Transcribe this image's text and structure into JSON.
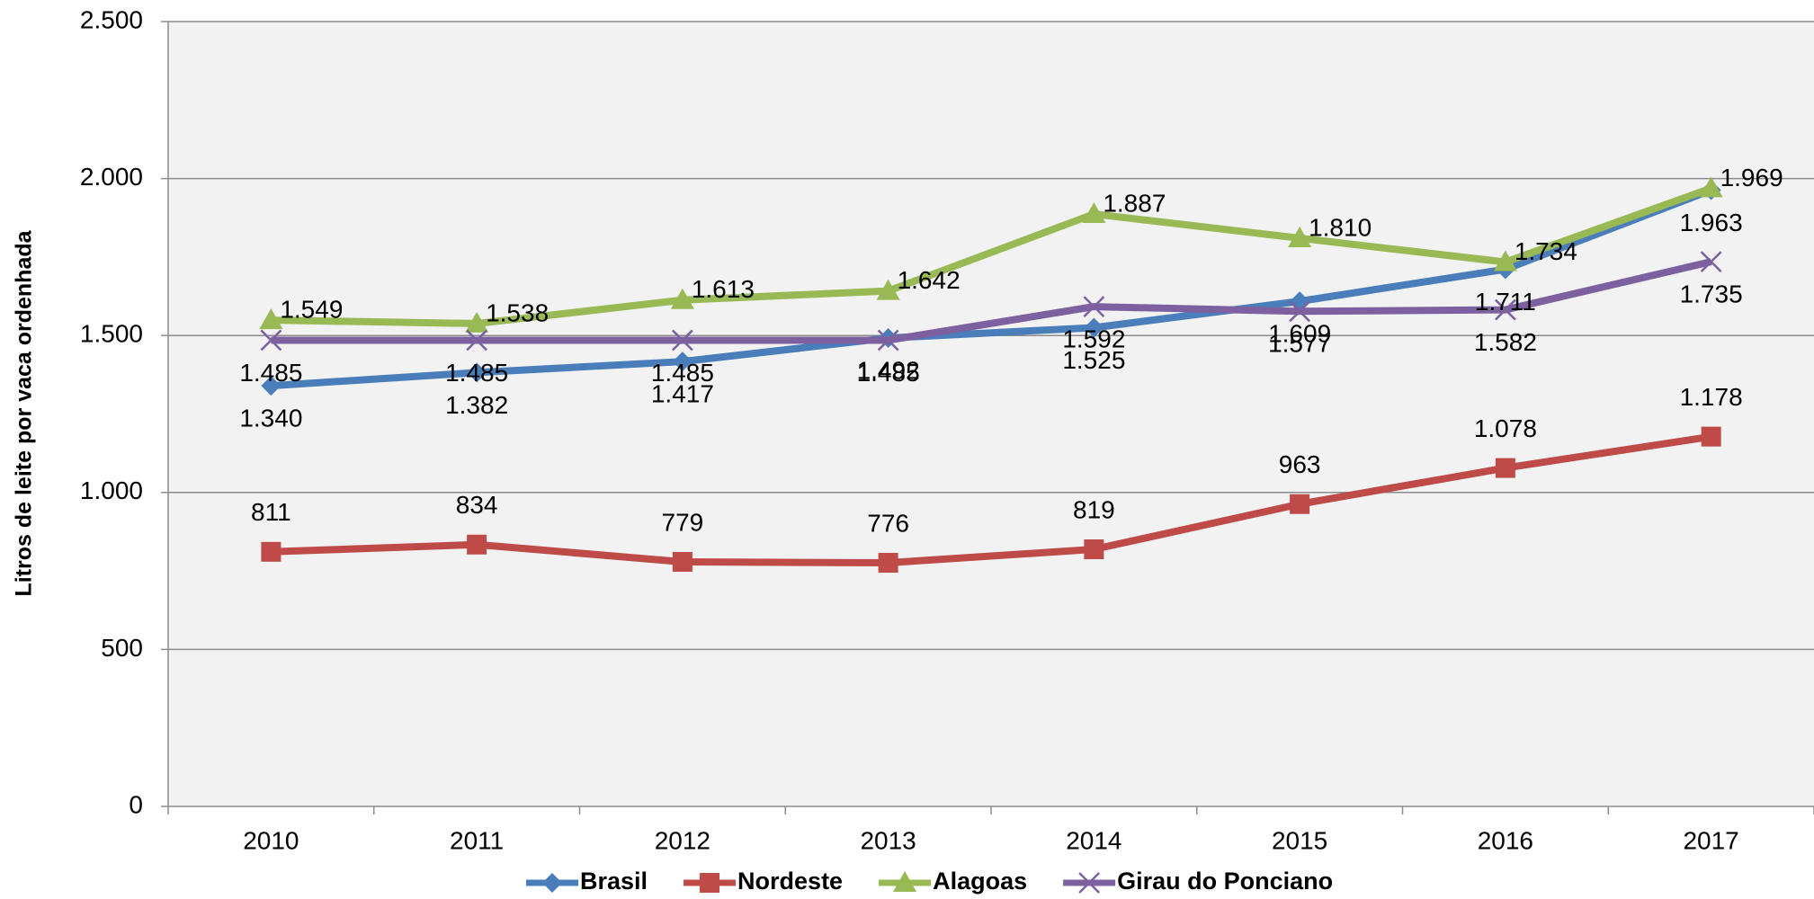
{
  "chart_data": {
    "type": "line",
    "y_label": "Litros de leite por vaca ordenhada",
    "categories": [
      "2010",
      "2011",
      "2012",
      "2013",
      "2014",
      "2015",
      "2016",
      "2017"
    ],
    "ylim": [
      0,
      2500
    ],
    "yticks": [
      0,
      500,
      {
        "value": 1000,
        "label": "1.000"
      },
      {
        "value": 1500,
        "label": "1.500"
      },
      {
        "value": 2000,
        "label": "2.000"
      },
      {
        "value": 2500,
        "label": "2.500"
      }
    ],
    "grid": true,
    "legend": "bottom",
    "series": [
      {
        "name": "Brasil",
        "color": "#4a7ebb",
        "marker": "diamond",
        "values": [
          1340,
          1382,
          1417,
          1492,
          1525,
          1609,
          1711,
          1963
        ],
        "value_labels": [
          "1.340",
          "1.382",
          "1.417",
          "1.492",
          "1.525",
          "1.609",
          "1.711",
          "1.963"
        ]
      },
      {
        "name": "Nordeste",
        "color": "#be4b48",
        "marker": "square",
        "values": [
          811,
          834,
          779,
          776,
          819,
          963,
          1078,
          1178
        ],
        "value_labels": [
          "811",
          "834",
          "779",
          "776",
          "819",
          "963",
          "1.078",
          "1.178"
        ]
      },
      {
        "name": "Alagoas",
        "color": "#98b954",
        "marker": "triangle",
        "values": [
          1549,
          1538,
          1613,
          1642,
          1887,
          1810,
          1734,
          1969
        ],
        "value_labels": [
          "1.549",
          "1.538",
          "1.613",
          "1.642",
          "1.887",
          "1.810",
          "1.734",
          "1.969"
        ]
      },
      {
        "name": "Girau do Ponciano",
        "color": "#7d60a0",
        "marker": "x",
        "values": [
          1485,
          1485,
          1485,
          1485,
          1592,
          1577,
          1582,
          1735
        ],
        "value_labels": [
          "1.485",
          "1.485",
          "1.485",
          "1.485",
          "1.592",
          "1.577",
          "1.582",
          "1.735"
        ]
      }
    ]
  }
}
